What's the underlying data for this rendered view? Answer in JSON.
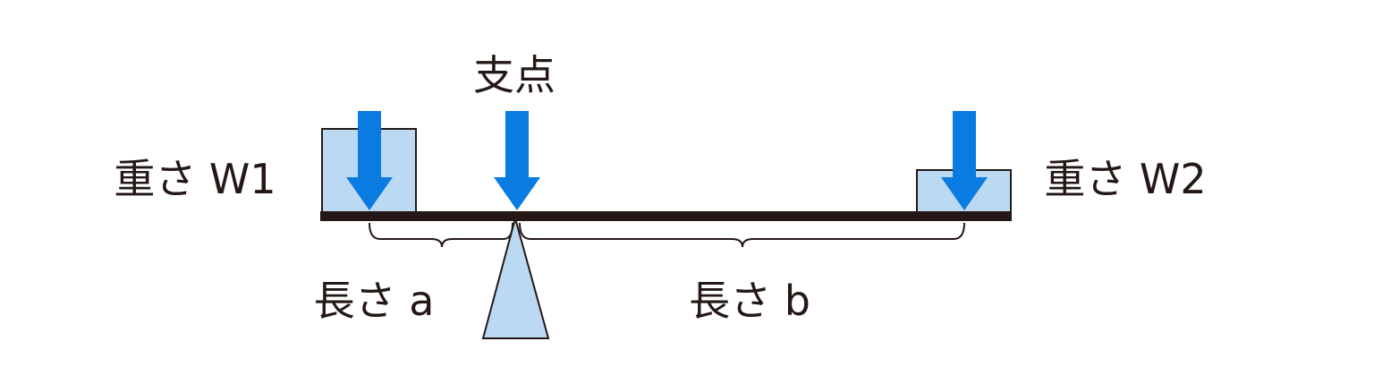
{
  "labels": {
    "fulcrum": "支点",
    "weight_left": "重さ W1",
    "weight_right": "重さ W2",
    "length_a": "長さ a",
    "length_b": "長さ b"
  },
  "colors": {
    "arrow": "#0a7be0",
    "box_fill": "#bcd9f4",
    "outline": "#231815",
    "beam": "#231815",
    "background": "#ffffff"
  },
  "icons": {
    "arrow": "down-arrow-icon"
  }
}
